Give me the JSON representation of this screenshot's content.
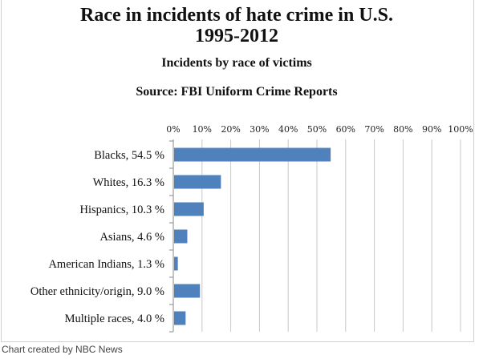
{
  "chart_data": {
    "type": "bar",
    "orientation": "horizontal",
    "title": "Race in incidents of hate crime in U.S. 1995-2012",
    "title_lines": [
      "Race in incidents of hate crime in U.S.",
      "1995-2012"
    ],
    "subtitle": "Incidents by race of victims",
    "source": "Source: FBI Uniform Crime Reports",
    "categories": [
      "Blacks, 54.5 %",
      "Whites, 16.3 %",
      "Hispanics, 10.3 %",
      "Asians, 4.6 %",
      "American Indians, 1.3 %",
      "Other ethnicity/origin, 9.0 %",
      "Multiple races, 4.0 %"
    ],
    "values": [
      54.5,
      16.3,
      10.3,
      4.6,
      1.3,
      9.0,
      4.0
    ],
    "xlim": [
      0,
      100
    ],
    "xticks": [
      "0%",
      "10%",
      "20%",
      "30%",
      "40%",
      "50%",
      "60%",
      "70%",
      "80%",
      "90%",
      "100%"
    ],
    "grid": true,
    "bar_color": "#4f81bd"
  },
  "footer": "Chart created by NBC News"
}
